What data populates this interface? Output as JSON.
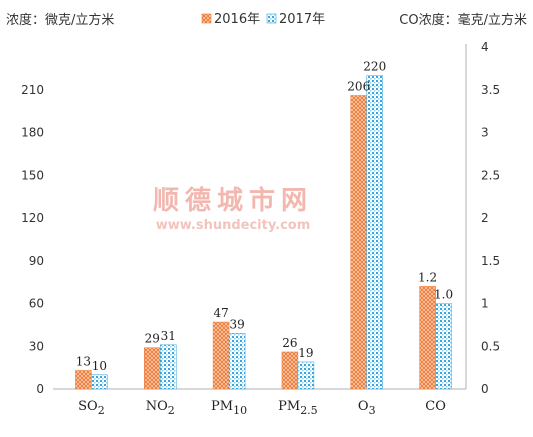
{
  "chart_data": {
    "type": "bar",
    "left_unit": "浓度：微克/立方米",
    "right_unit": "CO浓度：毫克/立方米",
    "legend_position": "top",
    "series": [
      {
        "name": "2016年",
        "color": "#f39a62",
        "pattern": "crosshatch"
      },
      {
        "name": "2017年",
        "color": "#5bb8e8",
        "pattern": "dotted"
      }
    ],
    "categories": [
      {
        "base": "SO",
        "sub": "2"
      },
      {
        "base": "NO",
        "sub": "2"
      },
      {
        "base": "PM",
        "sub": "10"
      },
      {
        "base": "PM",
        "sub": "2.5"
      },
      {
        "base": "O",
        "sub": "3"
      },
      {
        "base": "CO",
        "sub": ""
      }
    ],
    "values_left": [
      [
        13,
        10
      ],
      [
        29,
        31
      ],
      [
        47,
        39
      ],
      [
        26,
        19
      ],
      [
        206,
        220
      ]
    ],
    "co_values": [
      1.2,
      1.0
    ],
    "co_labels": [
      "1.2",
      "1.0"
    ],
    "ylim_left": [
      0,
      240
    ],
    "yticks_left": [
      "0",
      "30",
      "60",
      "90",
      "120",
      "150",
      "180",
      "210"
    ],
    "ylim_right": [
      0,
      4
    ],
    "yticks_right": [
      "0",
      "0.5",
      "1",
      "1.5",
      "2",
      "2.5",
      "3",
      "3.5",
      "4"
    ],
    "grid": false
  },
  "watermark": {
    "title": "顺德城市网",
    "url": "www.shundecity.com"
  }
}
